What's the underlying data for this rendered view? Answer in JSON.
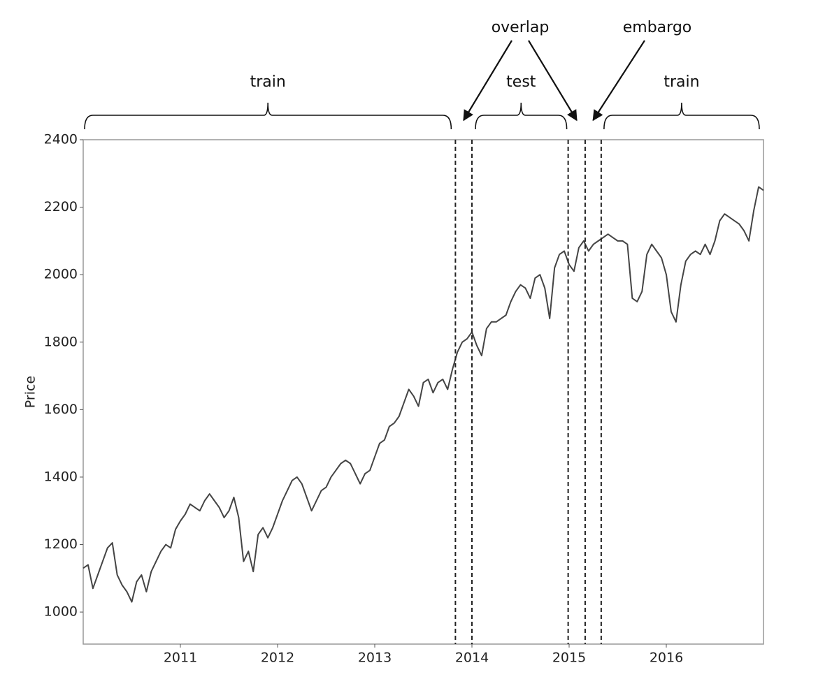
{
  "chart_data": {
    "type": "line",
    "y_label": "Price",
    "x": [
      2010.0,
      2010.05,
      2010.1,
      2010.15,
      2010.2,
      2010.25,
      2010.3,
      2010.35,
      2010.4,
      2010.45,
      2010.5,
      2010.55,
      2010.6,
      2010.65,
      2010.7,
      2010.75,
      2010.8,
      2010.85,
      2010.9,
      2010.95,
      2011.0,
      2011.05,
      2011.1,
      2011.15,
      2011.2,
      2011.25,
      2011.3,
      2011.35,
      2011.4,
      2011.45,
      2011.5,
      2011.55,
      2011.6,
      2011.65,
      2011.7,
      2011.75,
      2011.8,
      2011.85,
      2011.9,
      2011.95,
      2012.0,
      2012.05,
      2012.1,
      2012.15,
      2012.2,
      2012.25,
      2012.3,
      2012.35,
      2012.4,
      2012.45,
      2012.5,
      2012.55,
      2012.6,
      2012.65,
      2012.7,
      2012.75,
      2012.8,
      2012.85,
      2012.9,
      2012.95,
      2013.0,
      2013.05,
      2013.1,
      2013.15,
      2013.2,
      2013.25,
      2013.3,
      2013.35,
      2013.4,
      2013.45,
      2013.5,
      2013.55,
      2013.6,
      2013.65,
      2013.7,
      2013.75,
      2013.8,
      2013.85,
      2013.9,
      2013.95,
      2014.0,
      2014.05,
      2014.1,
      2014.15,
      2014.2,
      2014.25,
      2014.3,
      2014.35,
      2014.4,
      2014.45,
      2014.5,
      2014.55,
      2014.6,
      2014.65,
      2014.7,
      2014.75,
      2014.8,
      2014.85,
      2014.9,
      2014.95,
      2015.0,
      2015.05,
      2015.1,
      2015.15,
      2015.2,
      2015.25,
      2015.3,
      2015.35,
      2015.4,
      2015.45,
      2015.5,
      2015.55,
      2015.6,
      2015.65,
      2015.7,
      2015.75,
      2015.8,
      2015.85,
      2015.9,
      2015.95,
      2016.0,
      2016.05,
      2016.1,
      2016.15,
      2016.2,
      2016.25,
      2016.3,
      2016.35,
      2016.4,
      2016.45,
      2016.5,
      2016.55,
      2016.6,
      2016.65,
      2016.7,
      2016.75,
      2016.8,
      2016.85,
      2016.9,
      2016.95,
      2017.0
    ],
    "series": [
      {
        "color": "#444444",
        "values": [
          1130,
          1140,
          1070,
          1110,
          1150,
          1190,
          1205,
          1110,
          1080,
          1060,
          1030,
          1090,
          1110,
          1060,
          1120,
          1150,
          1180,
          1200,
          1190,
          1245,
          1270,
          1290,
          1320,
          1310,
          1300,
          1330,
          1350,
          1330,
          1310,
          1280,
          1300,
          1340,
          1280,
          1150,
          1180,
          1120,
          1230,
          1250,
          1220,
          1250,
          1290,
          1330,
          1360,
          1390,
          1400,
          1380,
          1340,
          1300,
          1330,
          1360,
          1370,
          1400,
          1420,
          1440,
          1450,
          1440,
          1410,
          1380,
          1410,
          1420,
          1460,
          1500,
          1510,
          1550,
          1560,
          1580,
          1620,
          1660,
          1640,
          1610,
          1680,
          1690,
          1650,
          1680,
          1690,
          1660,
          1720,
          1770,
          1800,
          1810,
          1830,
          1790,
          1760,
          1840,
          1860,
          1860,
          1870,
          1880,
          1920,
          1950,
          1970,
          1960,
          1930,
          1990,
          2000,
          1960,
          1870,
          2020,
          2060,
          2070,
          2030,
          2010,
          2080,
          2100,
          2070,
          2090,
          2100,
          2110,
          2120,
          2110,
          2100,
          2100,
          2090,
          1930,
          1920,
          1950,
          2060,
          2090,
          2070,
          2050,
          2000,
          1890,
          1860,
          1970,
          2040,
          2060,
          2070,
          2060,
          2090,
          2060,
          2100,
          2160,
          2180,
          2170,
          2160,
          2150,
          2130,
          2100,
          2190,
          2260,
          2250
        ]
      }
    ],
    "xlim": [
      2010.0,
      2017.0
    ],
    "xticks": [
      2011,
      2012,
      2013,
      2014,
      2015,
      2016
    ],
    "ylim": [
      905,
      2400
    ],
    "yticks": [
      1000,
      1200,
      1400,
      1600,
      1800,
      2000,
      2200,
      2400
    ],
    "vlines": [
      2013.83,
      2014.0,
      2014.99,
      2015.165,
      2015.33
    ],
    "braces": [
      {
        "label": "train"
      },
      {
        "label": "test"
      },
      {
        "label": "train"
      }
    ],
    "arrows": [
      {
        "label": "overlap"
      },
      {
        "label": "embargo"
      }
    ]
  }
}
